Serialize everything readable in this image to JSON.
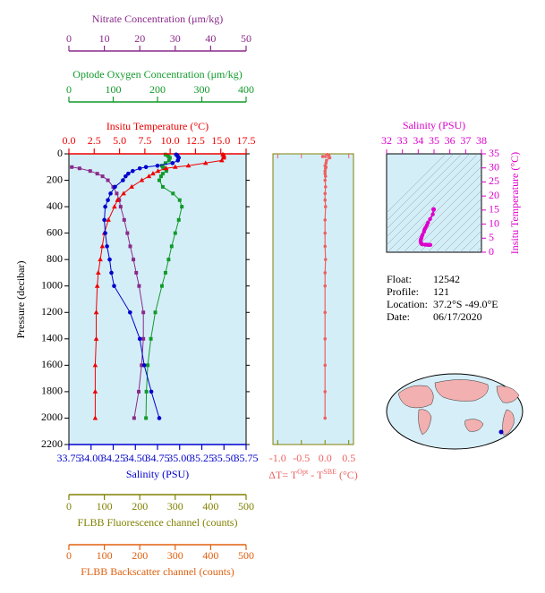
{
  "chart_data": [
    {
      "type": "line",
      "ylabel": "Pressure (decibar)",
      "ylim": [
        0,
        2200
      ],
      "yticks": [
        0,
        200,
        400,
        600,
        800,
        1000,
        1200,
        1400,
        1600,
        1800,
        2000,
        2200
      ],
      "y_inverted": true,
      "y": [
        5,
        10,
        20,
        30,
        50,
        70,
        90,
        100,
        110,
        130,
        150,
        170,
        200,
        250,
        300,
        350,
        400,
        500,
        600,
        700,
        800,
        900,
        1000,
        1200,
        1400,
        1600,
        1800,
        2000
      ],
      "x_axes": [
        {
          "label": "Nitrate Concentration (μm/kg)",
          "color": "#8a2a8a",
          "marker": "square",
          "xlim": [
            0,
            50
          ],
          "xticks": [
            0,
            10,
            20,
            30,
            40,
            50
          ],
          "values": [
            null,
            null,
            null,
            null,
            null,
            null,
            null,
            0.8,
            3,
            6,
            8,
            9.5,
            11,
            12.5,
            13.5,
            14.2,
            14.6,
            15.6,
            16.5,
            17.3,
            18.2,
            19,
            19.8,
            21,
            21,
            20.5,
            19.7,
            18.4
          ]
        },
        {
          "label": "Optode Oxygen Concentration (μm/kg)",
          "color": "#119a2a",
          "marker": "square",
          "xlim": [
            0,
            400
          ],
          "xticks": [
            0,
            100,
            200,
            300,
            400
          ],
          "values": [
            218,
            222,
            225,
            228,
            226,
            218,
            210,
            212,
            215,
            220,
            212,
            208,
            204,
            212,
            235,
            250,
            255,
            248,
            240,
            232,
            225,
            218,
            210,
            195,
            185,
            178,
            175,
            174
          ]
        },
        {
          "label": "Insitu Temperature (°C)",
          "color": "#ee0000",
          "marker": "triangle",
          "xlim": [
            0,
            17.5
          ],
          "xticks": [
            {
              "value": 0,
              "label": "0.0"
            },
            2.5,
            {
              "value": 5,
              "label": "5.0"
            },
            7.5,
            {
              "value": 10,
              "label": "10.0"
            },
            12.5,
            {
              "value": 15,
              "label": "15.0"
            },
            17.5
          ],
          "values": [
            15.2,
            15.3,
            15.3,
            15.3,
            15.1,
            13.5,
            11.8,
            10.5,
            9.6,
            8.8,
            8.3,
            7.9,
            7.2,
            6.2,
            5.4,
            4.8,
            4.5,
            3.9,
            3.5,
            3.3,
            3.1,
            2.9,
            2.8,
            2.7,
            2.7,
            2.6,
            2.6,
            2.6
          ]
        },
        {
          "label": "Salinity (PSU)",
          "color": "#0000cc",
          "marker": "circle",
          "xlim": [
            33.75,
            35.75
          ],
          "xticks": [
            33.75,
            {
              "value": 34,
              "label": "34.00"
            },
            34.25,
            {
              "value": 34.5,
              "label": "34.50"
            },
            34.75,
            {
              "value": 35,
              "label": "35.00"
            },
            35.25,
            {
              "value": 35.5,
              "label": "35.50"
            },
            35.75
          ],
          "values": [
            34.96,
            34.97,
            34.98,
            34.99,
            34.98,
            34.92,
            34.75,
            34.62,
            34.55,
            34.47,
            34.42,
            34.39,
            34.36,
            34.27,
            34.22,
            34.19,
            34.16,
            34.15,
            34.16,
            34.18,
            34.21,
            34.23,
            34.26,
            34.44,
            34.55,
            34.6,
            34.68,
            34.77
          ]
        },
        {
          "label": "FLBB Fluorescence channel (counts)",
          "color": "#808000",
          "xlim": [
            0,
            500
          ],
          "xticks": [
            0,
            100,
            200,
            300,
            400,
            500
          ]
        },
        {
          "label": "FLBB Backscatter channel (counts)",
          "color": "#e0600f",
          "xlim": [
            0,
            500
          ],
          "xticks": [
            0,
            100,
            200,
            300,
            400,
            500
          ]
        }
      ]
    },
    {
      "type": "scatter",
      "xlabel": [
        "ΔT= T",
        "Opt",
        " - T",
        "SBE",
        " (°C)"
      ],
      "color": "#ee6060",
      "xlim": [
        -1.1,
        0.6
      ],
      "xticks": [
        {
          "value": -1,
          "label": "-1.0"
        },
        -0.5,
        {
          "value": 0,
          "label": "0.0"
        },
        0.5
      ],
      "ylim": [
        0,
        2200
      ],
      "y": [
        5,
        10,
        20,
        30,
        50,
        70,
        90,
        100,
        110,
        130,
        150,
        170,
        200,
        250,
        300,
        350,
        400,
        500,
        600,
        700,
        800,
        900,
        1000,
        1200,
        1400,
        1600,
        1800,
        2000
      ],
      "values": [
        0.05,
        0.08,
        -0.05,
        0.1,
        0.03,
        0.02,
        0,
        0.02,
        0.01,
        0,
        0,
        0.01,
        0,
        0.01,
        0,
        0,
        0.01,
        0,
        0,
        0,
        0.01,
        0,
        0,
        0,
        0,
        0,
        0,
        0
      ]
    },
    {
      "type": "ts",
      "xlabel": "Salinity (PSU)",
      "ylabel": "Insitu Temperature (°C)",
      "color": "#dd00cc",
      "xlim": [
        32,
        38
      ],
      "xticks": [
        32,
        33,
        34,
        35,
        36,
        37,
        38
      ],
      "ylim": [
        0,
        35
      ],
      "yticks": [
        0,
        5,
        10,
        15,
        20,
        25,
        30,
        35
      ]
    }
  ],
  "float_info": [
    {
      "label": "Float:",
      "value": "12542"
    },
    {
      "label": "Profile:",
      "value": "121"
    },
    {
      "label": "Location:",
      "value": "37.2°S  -49.0°E"
    },
    {
      "label": "Date:",
      "value": "06/17/2020"
    }
  ]
}
